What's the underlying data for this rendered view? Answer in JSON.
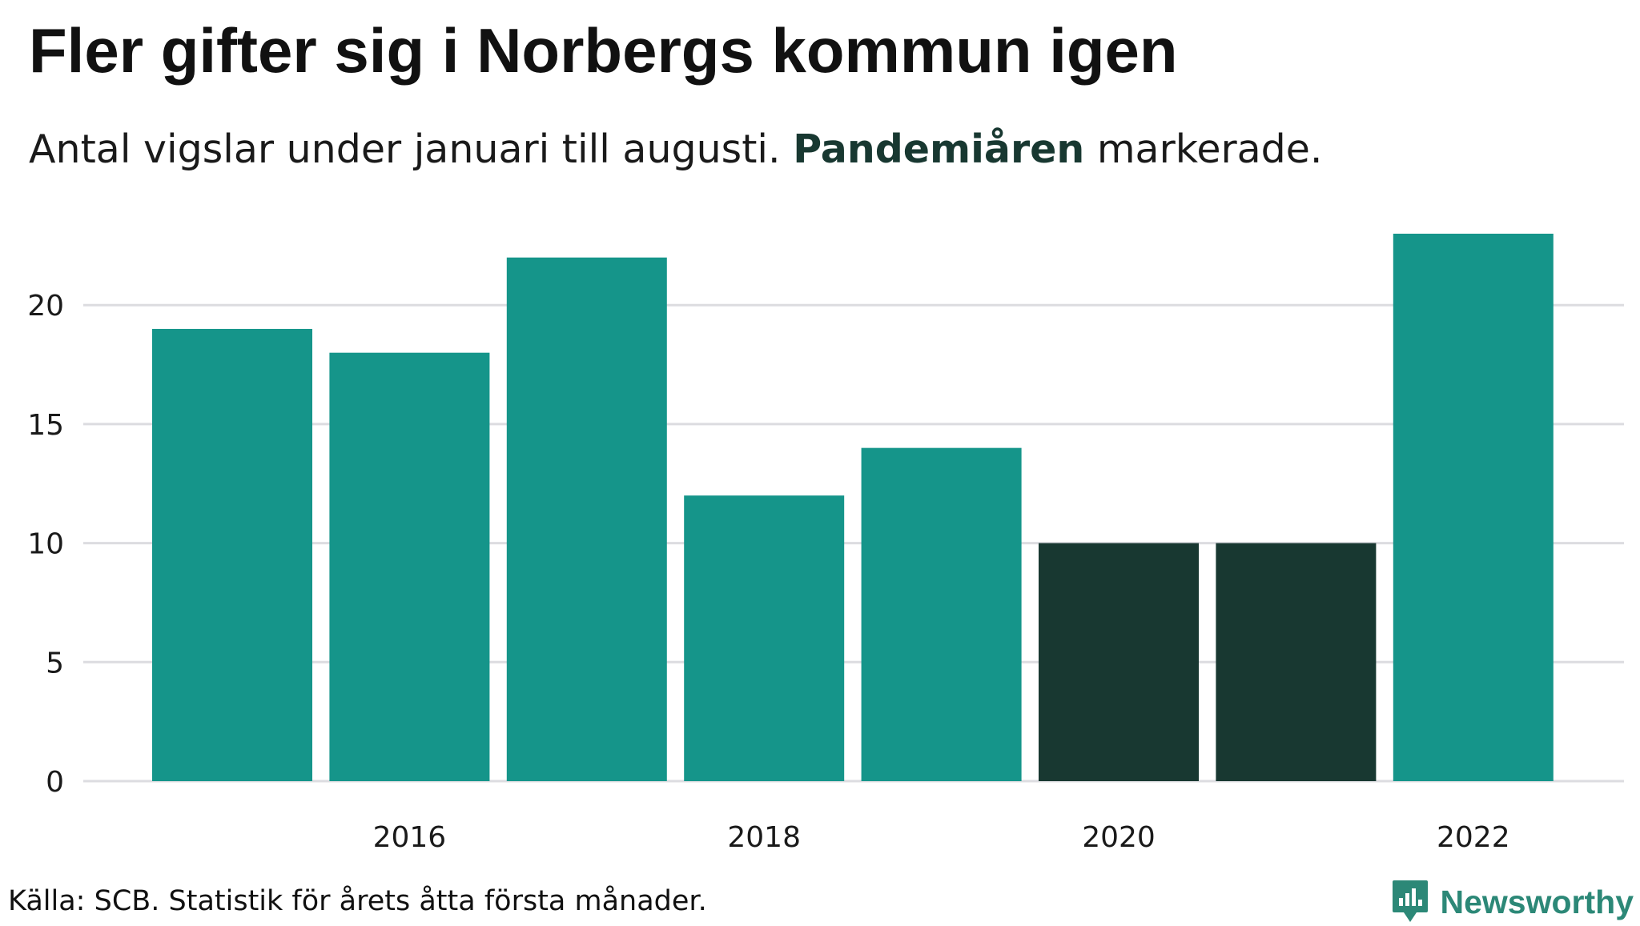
{
  "title": "Fler gifter sig i Norbergs kommun igen",
  "subtitle": {
    "before": "Antal vigslar under januari till augusti. ",
    "highlight": "Pandemiåren",
    "after": " markerade."
  },
  "source": "Källa: SCB. Statistik för årets åtta första månader.",
  "brand": {
    "name": "Newsworthy",
    "icon": "newsworthy-logo-icon"
  },
  "colors": {
    "bar": "#15958a",
    "highlight_bar": "#183831",
    "highlight_text": "#183831",
    "grid": "#dcdce0",
    "brand": "#2c8877"
  },
  "chart_data": {
    "type": "bar",
    "x": [
      2015,
      2016,
      2017,
      2018,
      2019,
      2020,
      2021,
      2022
    ],
    "values": [
      19,
      18,
      22,
      12,
      14,
      10,
      10,
      23
    ],
    "highlighted": [
      2020,
      2021
    ],
    "x_tick_labels": [
      "2016",
      "2018",
      "2020",
      "2022"
    ],
    "y_ticks": [
      0,
      5,
      10,
      15,
      20
    ],
    "ylim": [
      0,
      23
    ],
    "grid": true,
    "xlabel": "",
    "ylabel": ""
  }
}
